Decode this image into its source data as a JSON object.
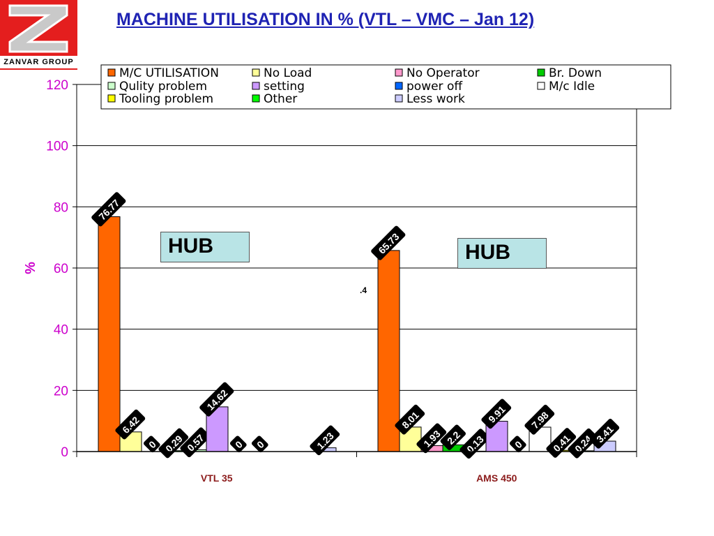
{
  "header": {
    "logo_text": "ZANVAR GROUP",
    "title": "MACHINE UTILISATION IN % (VTL – VMC – Jan 12)"
  },
  "annotations": {
    "hub_1": "HUB",
    "hub_2": "HUB",
    "stray": ".4"
  },
  "colors": {
    "title": "#1f23b3",
    "axis_labels": "#cc00cc",
    "category_labels": "#8b1a1a",
    "hub_box": "#b9e4e6"
  },
  "chart_data": {
    "type": "bar",
    "title": "MACHINE UTILISATION IN % (VTL – VMC – Jan 12)",
    "xlabel": "",
    "ylabel": "%",
    "ylim": [
      0,
      120
    ],
    "yticks": [
      0,
      20,
      40,
      60,
      80,
      100,
      120
    ],
    "grid": true,
    "legend_position": "top",
    "categories": [
      "VTL 35",
      "AMS 450"
    ],
    "series": [
      {
        "name": "M/C UTILISATION",
        "color": "#ff6600",
        "values": [
          76.77,
          65.73
        ],
        "labels": [
          "76.77",
          "65.73"
        ]
      },
      {
        "name": "No Load",
        "color": "#ffff99",
        "values": [
          6.42,
          8.01
        ],
        "labels": [
          "6.42",
          "8.01"
        ]
      },
      {
        "name": "No Operator",
        "color": "#ff99cc",
        "values": [
          0,
          1.93
        ],
        "labels": [
          "0",
          "1.93"
        ]
      },
      {
        "name": "Br. Down",
        "color": "#00cc00",
        "values": [
          0.29,
          2.2
        ],
        "labels": [
          "0.29",
          "2.2"
        ]
      },
      {
        "name": "Qulity problem",
        "color": "#ccffcc",
        "values": [
          0.57,
          0.13
        ],
        "labels": [
          "0.57",
          "0.13"
        ]
      },
      {
        "name": "setting",
        "color": "#cc99ff",
        "values": [
          14.62,
          9.91
        ],
        "labels": [
          "14.62",
          "9.91"
        ]
      },
      {
        "name": "power off",
        "color": "#0066ff",
        "values": [
          0,
          0
        ],
        "labels": [
          "0",
          "0"
        ]
      },
      {
        "name": "M/c Idle",
        "color": "#ffffff",
        "values": [
          0,
          7.98
        ],
        "labels": [
          "0",
          "7.98"
        ]
      },
      {
        "name": "Tooling problem",
        "color": "#ffff00",
        "values": [
          0,
          0.41
        ],
        "labels": [
          "",
          "0.41"
        ]
      },
      {
        "name": "Other",
        "color": "#00ff00",
        "values": [
          0,
          0.24
        ],
        "labels": [
          "",
          "0.24"
        ]
      },
      {
        "name": "Less work",
        "color": "#ccccff",
        "values": [
          1.23,
          3.41
        ],
        "labels": [
          "1.23",
          "3.41"
        ]
      }
    ]
  }
}
